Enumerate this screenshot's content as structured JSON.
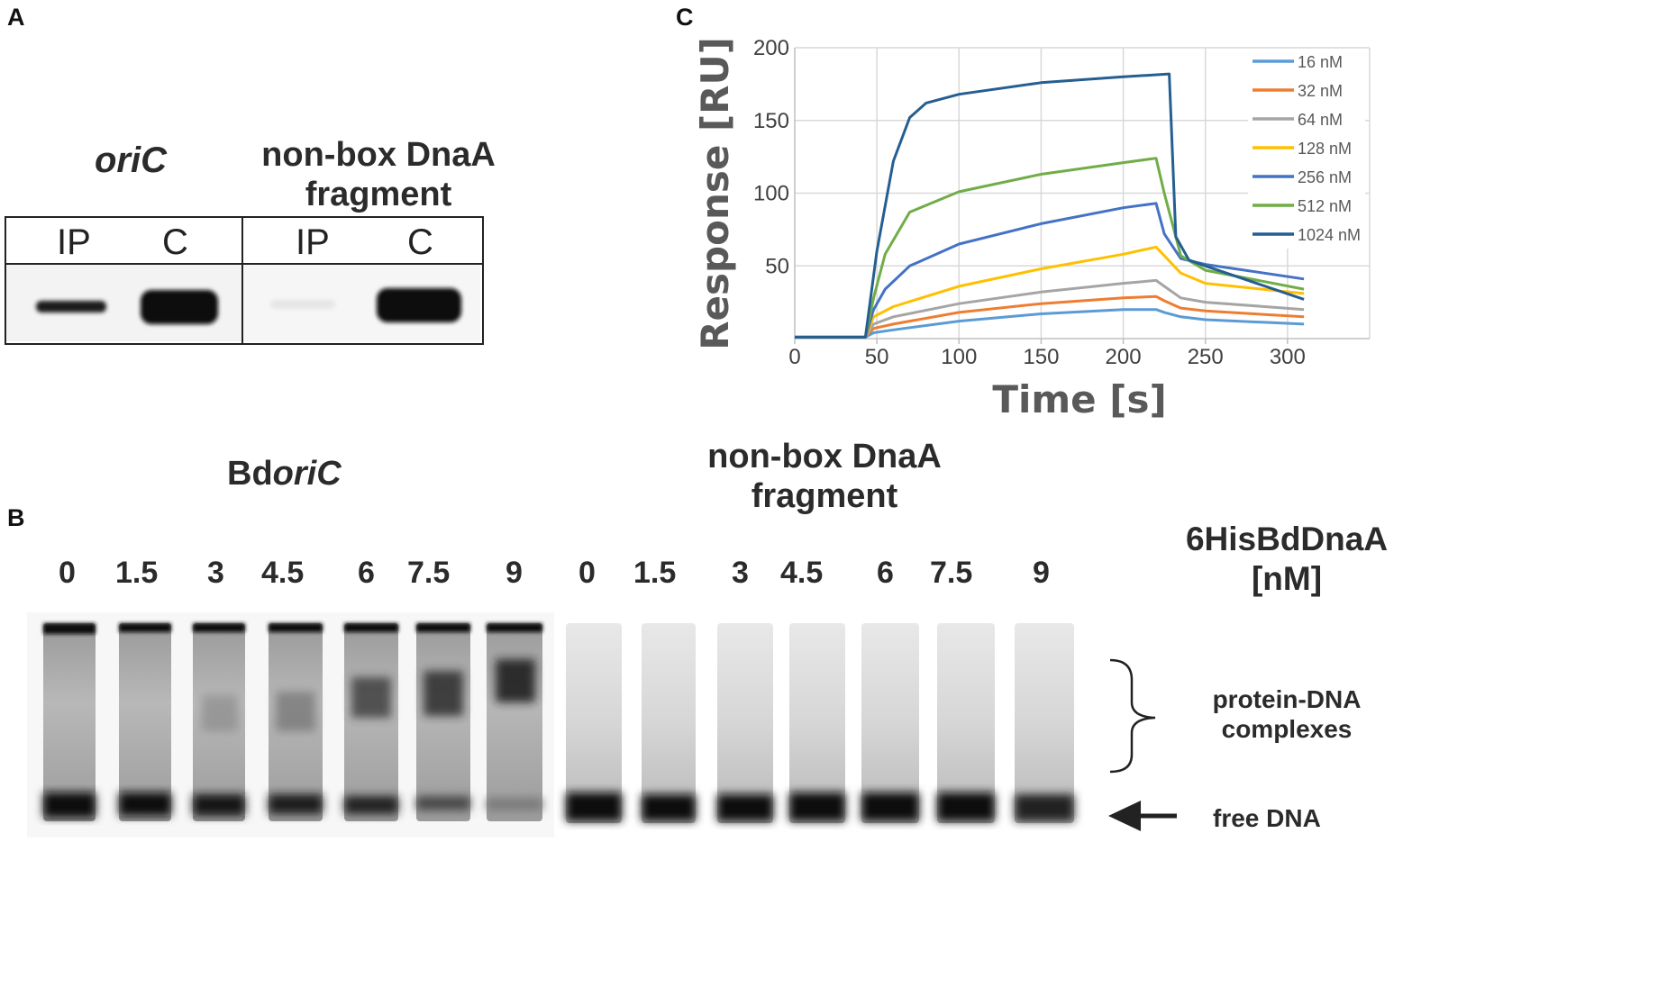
{
  "panel_a": {
    "letter": "A",
    "title_oric": "oriC",
    "title_nonbox_line1": "non-box DnaA",
    "title_nonbox_line2": "fragment",
    "lanes": [
      "IP",
      "C",
      "IP",
      "C"
    ]
  },
  "panel_b": {
    "letter": "B",
    "title_bdoric_prefix": "Bd",
    "title_bdoric_italic": "oriC",
    "title_nonbox_line1": "non-box DnaA",
    "title_nonbox_line2": "fragment",
    "protein_label_line1": "6HisBdDnaA",
    "protein_label_line2": "[nM]",
    "concentrations": [
      "0",
      "1.5",
      "3",
      "4.5",
      "6",
      "7.5",
      "9",
      "0",
      "1.5",
      "3",
      "4.5",
      "6",
      "7.5",
      "9"
    ],
    "complexes_line1": "protein-DNA",
    "complexes_line2": "complexes",
    "free_dna": "free DNA"
  },
  "panel_c": {
    "letter": "C"
  },
  "chart_data": {
    "type": "line",
    "xlabel": "Time [s]",
    "ylabel": "Response [RU]",
    "xlim": [
      0,
      350
    ],
    "ylim": [
      0,
      200
    ],
    "xticks": [
      0,
      50,
      100,
      150,
      200,
      250,
      300
    ],
    "yticks": [
      50,
      100,
      150,
      200
    ],
    "grid": true,
    "legend": "top-right",
    "series": [
      {
        "name": "16 nM",
        "color": "#5b9bd5",
        "x": [
          0,
          43,
          48,
          60,
          100,
          150,
          200,
          220,
          225,
          235,
          250,
          310
        ],
        "y": [
          1,
          1,
          4,
          6,
          12,
          17,
          20,
          20,
          18,
          15,
          13,
          10
        ]
      },
      {
        "name": "32 nM",
        "color": "#ed7d31",
        "x": [
          0,
          43,
          48,
          60,
          100,
          150,
          200,
          220,
          225,
          235,
          250,
          310
        ],
        "y": [
          1,
          1,
          7,
          10,
          18,
          24,
          28,
          29,
          26,
          21,
          19,
          15
        ]
      },
      {
        "name": "64 nM",
        "color": "#a5a5a5",
        "x": [
          0,
          43,
          48,
          60,
          100,
          150,
          200,
          220,
          225,
          235,
          250,
          310
        ],
        "y": [
          1,
          1,
          10,
          15,
          24,
          32,
          38,
          40,
          36,
          28,
          25,
          20
        ]
      },
      {
        "name": "128 nM",
        "color": "#ffc000",
        "x": [
          0,
          43,
          48,
          60,
          100,
          150,
          200,
          220,
          225,
          235,
          250,
          310
        ],
        "y": [
          1,
          1,
          15,
          22,
          36,
          48,
          58,
          63,
          57,
          45,
          38,
          31
        ]
      },
      {
        "name": "256 nM",
        "color": "#4472c4",
        "x": [
          0,
          43,
          48,
          55,
          70,
          100,
          150,
          200,
          220,
          225,
          235,
          250,
          310
        ],
        "y": [
          1,
          1,
          20,
          34,
          50,
          65,
          79,
          90,
          93,
          72,
          55,
          51,
          41
        ]
      },
      {
        "name": "512 nM",
        "color": "#70ad47",
        "x": [
          0,
          43,
          48,
          55,
          70,
          100,
          150,
          200,
          220,
          225,
          235,
          250,
          310
        ],
        "y": [
          1,
          1,
          28,
          58,
          87,
          101,
          113,
          121,
          124,
          100,
          57,
          47,
          34
        ]
      },
      {
        "name": "1024 nM",
        "color": "#255e91",
        "x": [
          0,
          43,
          50,
          60,
          70,
          80,
          100,
          150,
          200,
          228,
          232,
          240,
          250,
          310
        ],
        "y": [
          1,
          1,
          60,
          122,
          152,
          162,
          168,
          176,
          180,
          182,
          70,
          54,
          50,
          27
        ]
      }
    ]
  }
}
